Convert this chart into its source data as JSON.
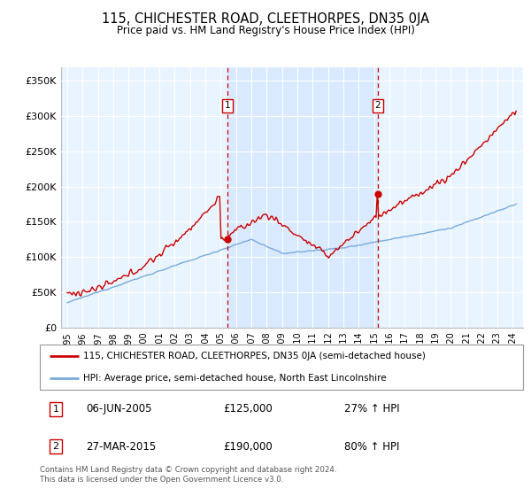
{
  "title": "115, CHICHESTER ROAD, CLEETHORPES, DN35 0JA",
  "subtitle": "Price paid vs. HM Land Registry's House Price Index (HPI)",
  "ylabel_ticks": [
    "£0",
    "£50K",
    "£100K",
    "£150K",
    "£200K",
    "£250K",
    "£300K",
    "£350K"
  ],
  "ytick_values": [
    0,
    50000,
    100000,
    150000,
    200000,
    250000,
    300000,
    350000
  ],
  "ylim": [
    0,
    370000
  ],
  "xlim_start": 1994.6,
  "xlim_end": 2024.7,
  "transaction1_x": 2005.43,
  "transaction1_y": 125000,
  "transaction1_label": "1",
  "transaction1_date": "06-JUN-2005",
  "transaction1_price": "£125,000",
  "transaction1_hpi": "27% ↑ HPI",
  "transaction2_x": 2015.24,
  "transaction2_y": 190000,
  "transaction2_label": "2",
  "transaction2_date": "27-MAR-2015",
  "transaction2_price": "£190,000",
  "transaction2_hpi": "80% ↑ HPI",
  "red_color": "#cc0000",
  "blue_color": "#7aaadd",
  "shade_color": "#ddeeff",
  "bg_plot": "#e8f4ff",
  "grid_color": "#ffffff",
  "legend_label_red": "115, CHICHESTER ROAD, CLEETHORPES, DN35 0JA (semi-detached house)",
  "legend_label_blue": "HPI: Average price, semi-detached house, North East Lincolnshire",
  "footer": "Contains HM Land Registry data © Crown copyright and database right 2024.\nThis data is licensed under the Open Government Licence v3.0."
}
